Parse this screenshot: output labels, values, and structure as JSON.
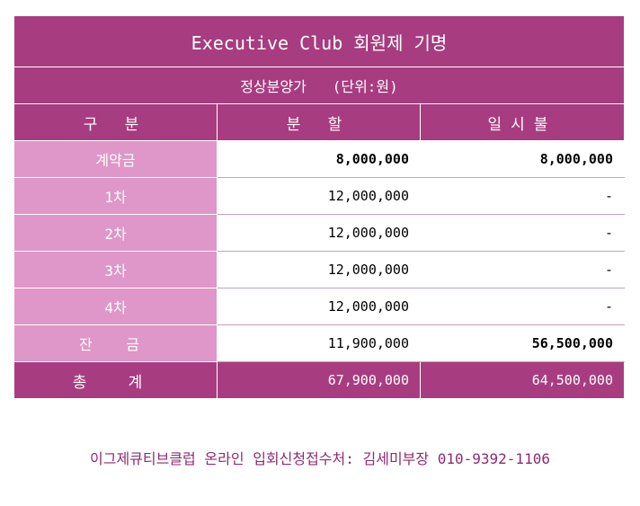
{
  "title": "Executive Club 회원제 기명",
  "subtitle": "정상분양가   (단위:원)",
  "headers": [
    "구 분",
    "분 할",
    "일시불"
  ],
  "rows": [
    {
      "label": "계약금",
      "installment": "8,000,000",
      "lump": "8,000,000"
    },
    {
      "label": "1차",
      "installment": "12,000,000",
      "lump": "-"
    },
    {
      "label": "2차",
      "installment": "12,000,000",
      "lump": "-"
    },
    {
      "label": "3차",
      "installment": "12,000,000",
      "lump": "-"
    },
    {
      "label": "4차",
      "installment": "12,000,000",
      "lump": "-"
    },
    {
      "label": "잔 금",
      "installment": "11,900,000",
      "lump": "56,500,000"
    }
  ],
  "total": {
    "label": "총 계",
    "installment": "67,900,000",
    "lump": "64,500,000"
  },
  "footer": "이그제큐티브클럽 온라인 입회신청접수처: 김세미부장 010-9392-1106",
  "colors": {
    "header_bg": "#a83c80",
    "label_bg": "#df96c8",
    "footer_text": "#8f2a73"
  }
}
